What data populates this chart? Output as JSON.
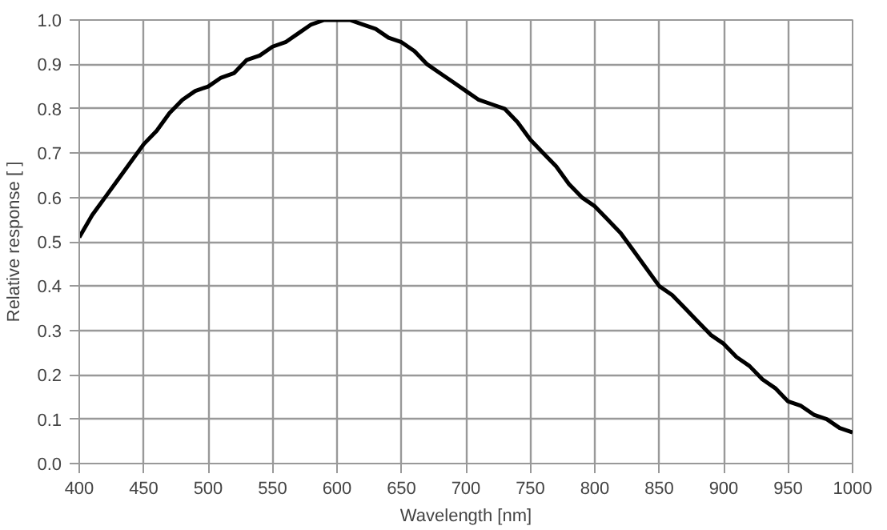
{
  "chart_data": {
    "type": "line",
    "xlabel": "Wavelength [nm]",
    "ylabel": "Relative response [ ]",
    "x": [
      400,
      410,
      420,
      430,
      440,
      450,
      460,
      470,
      480,
      490,
      500,
      510,
      520,
      530,
      540,
      550,
      560,
      570,
      580,
      590,
      600,
      610,
      620,
      630,
      640,
      650,
      660,
      670,
      680,
      690,
      700,
      710,
      720,
      730,
      740,
      750,
      760,
      770,
      780,
      790,
      800,
      810,
      820,
      830,
      840,
      850,
      860,
      870,
      880,
      890,
      900,
      910,
      920,
      930,
      940,
      950,
      960,
      970,
      980,
      990,
      1000
    ],
    "series": [
      {
        "color": "#000000",
        "values": [
          0.51,
          0.56,
          0.6,
          0.64,
          0.68,
          0.72,
          0.75,
          0.79,
          0.82,
          0.84,
          0.85,
          0.87,
          0.88,
          0.91,
          0.92,
          0.94,
          0.95,
          0.97,
          0.99,
          1.0,
          1.0,
          1.0,
          0.99,
          0.98,
          0.96,
          0.95,
          0.93,
          0.9,
          0.88,
          0.86,
          0.84,
          0.82,
          0.81,
          0.8,
          0.77,
          0.73,
          0.7,
          0.67,
          0.63,
          0.6,
          0.58,
          0.55,
          0.52,
          0.48,
          0.44,
          0.4,
          0.38,
          0.35,
          0.32,
          0.29,
          0.27,
          0.24,
          0.22,
          0.19,
          0.17,
          0.14,
          0.13,
          0.11,
          0.1,
          0.08,
          0.07
        ]
      }
    ],
    "xlim": [
      400,
      1000
    ],
    "ylim": [
      0,
      1
    ],
    "xticks": [
      400,
      450,
      500,
      550,
      600,
      650,
      700,
      750,
      800,
      850,
      900,
      950,
      1000
    ],
    "yticks": [
      {
        "value": 0,
        "label": "0.0"
      },
      0.1,
      0.2,
      0.3,
      0.4,
      0.5,
      0.6,
      0.7,
      0.8,
      0.9,
      {
        "value": 1,
        "label": "1.0"
      }
    ],
    "grid": true,
    "marker": "none",
    "line_style": "solid"
  }
}
